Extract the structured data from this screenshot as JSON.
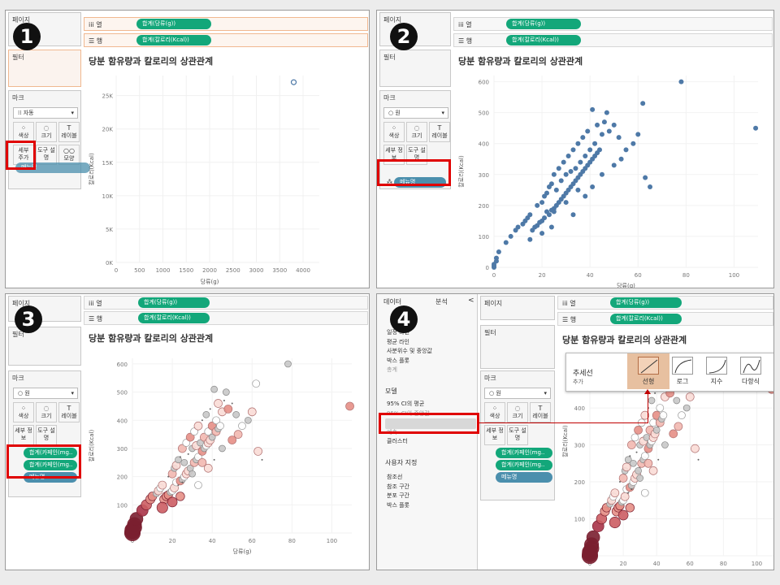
{
  "steps": [
    "1",
    "2",
    "3",
    "4"
  ],
  "shelves": {
    "pages": "페이지",
    "columns_icon": "iii",
    "columns": "열",
    "rows_icon": "☰",
    "rows": "행",
    "col_pill": "합계(당류(g))",
    "row_pill": "합계(칼로리(Kcal))"
  },
  "cards": {
    "filters": "필터",
    "marks": "마크"
  },
  "marks": {
    "type_auto": "자동",
    "type_circle": "원",
    "color": "색상",
    "size": "크기",
    "label": "레이블",
    "detail": "세부 정보",
    "tooltip": "도구 설명",
    "shape": "모양",
    "menu_pill": "메뉴명",
    "caffeine_color_pill": "합계(카페인(mg..",
    "caffeine_size_pill": "합계(카페인(mg..",
    "detail_drag": "세부",
    "detail_drag2": "주가"
  },
  "chart": {
    "title": "당분 함유량과 칼로리의 상관관계",
    "xlabel": "당류(g)",
    "ylabel": "칼로리(Kcal)",
    "x_ticks_p1": [
      "0",
      "500",
      "1000",
      "1500",
      "2000",
      "2500",
      "3000",
      "3500",
      "4000"
    ],
    "y_ticks_p1": [
      "0K",
      "5K",
      "10K",
      "15K",
      "20K",
      "25K"
    ],
    "x_ticks": [
      "0",
      "20",
      "40",
      "60",
      "80",
      "100"
    ],
    "y_ticks": [
      "0",
      "100",
      "200",
      "300",
      "400",
      "500",
      "600"
    ]
  },
  "analytics": {
    "tab_data": "데이터",
    "tab_analytics": "분석",
    "collapse": "<",
    "items_top": [
      "일정 라인",
      "평균 라인",
      "사분위수 및 중앙값",
      "박스 플롯",
      "총계"
    ],
    "model_header": "모델",
    "model_items": [
      "95% CI의 평균",
      "95% CI의 중앙값",
      "추세선",
      "예측",
      "클러스터"
    ],
    "custom_header": "사용자 지정",
    "custom_items": [
      "참조선",
      "참조 구간",
      "분포 구간",
      "박스 플롯"
    ]
  },
  "trend_popup": {
    "title": "추세선",
    "subtitle": "추가",
    "options": [
      "선형",
      "로그",
      "지수",
      "다항식"
    ]
  },
  "chart_data": [
    {
      "type": "scatter",
      "title": "당분 함유량과 칼로리의 상관관계",
      "xlabel": "당류(g)",
      "ylabel": "칼로리(Kcal)",
      "xlim": [
        0,
        4000
      ],
      "ylim": [
        0,
        28000
      ],
      "points": [
        [
          3800,
          27000
        ]
      ]
    },
    {
      "type": "scatter",
      "title": "당분 함유량과 칼로리의 상관관계",
      "xlabel": "당류(g)",
      "ylabel": "칼로리(Kcal)",
      "xlim": [
        0,
        110
      ],
      "ylim": [
        0,
        620
      ],
      "x": [
        0,
        0,
        0,
        1,
        1,
        2,
        5,
        7,
        9,
        10,
        12,
        13,
        14,
        15,
        16,
        17,
        18,
        18,
        19,
        20,
        20,
        21,
        21,
        22,
        22,
        23,
        23,
        24,
        24,
        25,
        25,
        26,
        26,
        27,
        27,
        28,
        28,
        29,
        29,
        30,
        30,
        31,
        31,
        32,
        32,
        33,
        33,
        34,
        34,
        35,
        35,
        36,
        36,
        37,
        37,
        38,
        38,
        39,
        39,
        40,
        40,
        41,
        41,
        42,
        42,
        43,
        43,
        44,
        45,
        46,
        47,
        48,
        50,
        52,
        53,
        55,
        58,
        60,
        62,
        63,
        65,
        78,
        109,
        25,
        30,
        35,
        15,
        20,
        24,
        33,
        38,
        41,
        45,
        50
      ],
      "y": [
        0,
        5,
        10,
        20,
        30,
        50,
        80,
        100,
        120,
        130,
        140,
        150,
        160,
        170,
        120,
        130,
        135,
        200,
        145,
        210,
        150,
        230,
        160,
        180,
        240,
        170,
        260,
        185,
        270,
        190,
        300,
        200,
        250,
        210,
        320,
        220,
        280,
        230,
        340,
        240,
        300,
        250,
        360,
        260,
        310,
        270,
        380,
        280,
        320,
        290,
        400,
        300,
        340,
        310,
        420,
        320,
        360,
        330,
        440,
        340,
        380,
        350,
        510,
        360,
        400,
        370,
        460,
        380,
        430,
        470,
        500,
        440,
        460,
        420,
        350,
        380,
        400,
        430,
        530,
        290,
        260,
        600,
        450,
        180,
        210,
        250,
        90,
        110,
        130,
        170,
        230,
        260,
        300,
        330
      ]
    }
  ]
}
